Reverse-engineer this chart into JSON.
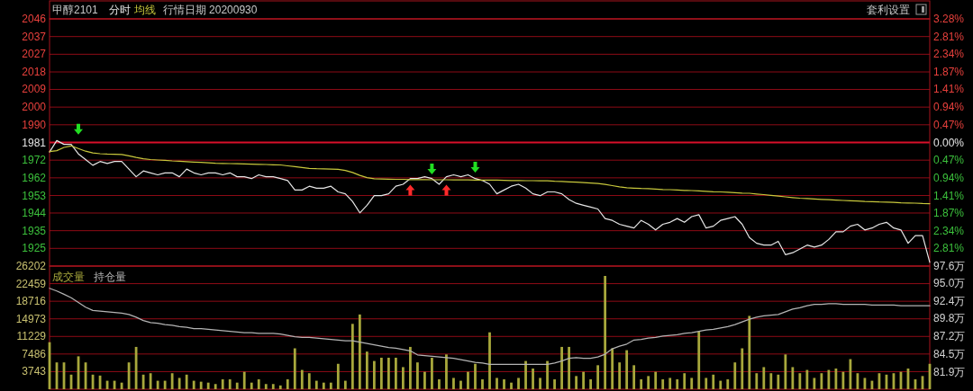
{
  "chart_data": [
    {
      "type": "line",
      "title": "甲醇2101",
      "subtitle": "行情日期 20200930",
      "annotations": [
        "套利设置"
      ],
      "legend": "top left",
      "grid": "y",
      "categories": [
        null,
        null,
        null,
        null,
        null,
        null,
        null,
        null,
        null,
        null,
        null,
        null,
        null,
        null,
        null,
        null,
        null,
        null,
        null,
        null,
        null,
        null,
        null,
        null,
        null,
        null,
        null,
        null,
        null,
        null,
        null,
        null,
        null,
        null,
        null,
        null,
        null,
        null,
        null,
        null,
        null,
        null,
        null,
        null,
        null,
        null,
        null,
        null,
        null,
        null,
        null,
        null,
        null,
        null,
        null,
        null,
        null,
        null,
        null,
        null,
        null,
        null,
        null,
        null,
        null,
        null,
        null,
        null,
        null,
        null,
        null,
        null,
        null,
        null,
        null,
        null,
        null,
        null,
        null,
        null,
        null,
        null,
        null,
        null,
        null,
        null,
        null,
        null,
        null,
        null,
        null,
        null,
        null,
        null,
        null,
        null,
        null,
        null,
        null,
        null,
        null,
        null,
        null,
        null,
        null,
        null,
        null,
        null,
        null,
        null,
        null,
        null,
        null,
        null,
        null,
        null,
        null,
        null,
        null,
        null,
        null,
        null,
        null
      ],
      "ylim": [
        1916,
        2046
      ],
      "yticks": [
        2046,
        {
          "value": 2036.7,
          "label": "2037"
        },
        {
          "value": 2027.4,
          "label": "2027"
        },
        {
          "value": 2018.1,
          "label": "2018"
        },
        {
          "value": 2008.9,
          "label": "2009"
        },
        {
          "value": 1999.6,
          "label": "2000"
        },
        {
          "value": 1990.3,
          "label": "1990"
        },
        1981,
        {
          "value": 1971.7,
          "label": "1972"
        },
        {
          "value": 1962.4,
          "label": "1962"
        },
        {
          "value": 1953.1,
          "label": "1953"
        },
        {
          "value": 1943.9,
          "label": "1944"
        },
        {
          "value": 1934.6,
          "label": "1935"
        },
        {
          "value": 1925.3,
          "label": "1925"
        }
      ],
      "y2lim": [
        -3.28,
        3.28
      ],
      "y2ticks": [
        {
          "value": 3.28,
          "label": "3.28%"
        },
        {
          "value": 2.81,
          "label": "2.81%"
        },
        {
          "value": 2.34,
          "label": "2.34%"
        },
        {
          "value": 1.87,
          "label": "1.87%"
        },
        {
          "value": 1.41,
          "label": "1.41%"
        },
        {
          "value": 0.94,
          "label": "0.94%"
        },
        {
          "value": 0.47,
          "label": "0.47%"
        },
        {
          "value": 0,
          "label": "0.00%"
        },
        {
          "value": -0.47,
          "label": "0.47%"
        },
        {
          "value": -0.94,
          "label": "0.94%"
        },
        {
          "value": -1.41,
          "label": "1.41%"
        },
        {
          "value": -1.87,
          "label": "1.87%"
        },
        {
          "value": -2.34,
          "label": "2.34%"
        },
        {
          "value": -2.81,
          "label": "2.81%"
        }
      ],
      "ref_lines": [
        {
          "axis": "y",
          "value": 1981
        }
      ],
      "series": [
        {
          "name": "分时",
          "color": "#e6e6e6",
          "values": [
            1976,
            1982,
            1980,
            1980,
            1975,
            1972,
            1969,
            1971,
            1970,
            1971,
            1971,
            1967,
            1963,
            1966,
            1965,
            1964,
            1965,
            1965,
            1963,
            1967,
            1965,
            1964,
            1965,
            1965,
            1964,
            1965,
            1963,
            1963,
            1962,
            1964,
            1963,
            1963,
            1962,
            1961,
            1956,
            1956,
            1958,
            1957,
            1957,
            1958,
            1955,
            1954,
            1950,
            1944,
            1948,
            1953,
            1953,
            1954,
            1958,
            1959,
            1962,
            1962,
            1963,
            1962,
            1959,
            1963,
            1964,
            1963,
            1964,
            1962,
            1961,
            1959,
            1954,
            1956,
            1958,
            1959,
            1957,
            1954,
            1953,
            1955,
            1955,
            1954,
            1951,
            1949,
            1948,
            1947,
            1946,
            1941,
            1940,
            1938,
            1937,
            1936,
            1940,
            1938,
            1935,
            1938,
            1939,
            1941,
            1939,
            1942,
            1943,
            1936,
            1937,
            1940,
            1941,
            1942,
            1938,
            1931,
            1928,
            1927,
            1927,
            1929,
            1922,
            1923,
            1925,
            1927,
            1926,
            1927,
            1930,
            1934,
            1934,
            1937,
            1938,
            1935,
            1936,
            1938,
            1939,
            1936,
            1935,
            1928,
            1932,
            1932,
            1918
          ]
        },
        {
          "name": "均线",
          "color": "#c8c83c",
          "values": [
            1976.2,
            1976.7,
            1978.4,
            1979.2,
            1977.8,
            1976.4,
            1975.5,
            1975.1,
            1974.9,
            1974.8,
            1974.7,
            1974.0,
            1973.1,
            1972.4,
            1972.0,
            1971.8,
            1971.6,
            1971.3,
            1971.1,
            1970.9,
            1970.7,
            1970.5,
            1970.3,
            1970.1,
            1970.0,
            1969.9,
            1969.8,
            1969.7,
            1969.6,
            1969.5,
            1969.4,
            1969.3,
            1969.2,
            1968.7,
            1968.3,
            1967.8,
            1967.4,
            1967.2,
            1967.1,
            1967.0,
            1966.9,
            1966.3,
            1965.2,
            1963.7,
            1962.5,
            1961.9,
            1961.8,
            1961.7,
            1961.6,
            1961.6,
            1961.5,
            1961.5,
            1961.5,
            1961.4,
            1961.4,
            1961.4,
            1961.3,
            1961.3,
            1961.3,
            1961.2,
            1961.2,
            1961.2,
            1961.2,
            1961.1,
            1961.0,
            1961.0,
            1960.9,
            1960.9,
            1960.8,
            1960.8,
            1960.6,
            1960.5,
            1960.3,
            1960.1,
            1959.9,
            1959.7,
            1959.4,
            1958.9,
            1958.3,
            1957.7,
            1957.2,
            1957.0,
            1956.8,
            1956.7,
            1956.5,
            1956.3,
            1956.2,
            1956.0,
            1955.8,
            1955.7,
            1955.5,
            1955.3,
            1955.1,
            1955.0,
            1954.8,
            1954.6,
            1954.4,
            1954.3,
            1953.9,
            1953.6,
            1953.2,
            1952.8,
            1952.4,
            1952.0,
            1951.7,
            1951.5,
            1951.3,
            1951.1,
            1950.9,
            1950.7,
            1950.5,
            1950.3,
            1950.2,
            1950.0,
            1949.9,
            1949.7,
            1949.6,
            1949.5,
            1949.3,
            1949.2,
            1949.1,
            1948.9,
            1948.8
          ]
        },
        {
          "type": "scatter",
          "marker": "triangle",
          "color": "#22dd22",
          "values": [
            null,
            null,
            null,
            null,
            1988,
            null,
            null,
            null,
            null,
            null,
            null,
            null,
            null,
            null,
            null,
            null,
            null,
            null,
            null,
            null,
            null,
            null,
            null,
            null,
            null,
            null,
            null,
            null,
            null,
            null,
            null,
            null,
            null,
            null,
            null,
            null,
            null,
            null,
            null,
            null,
            null,
            null,
            null,
            null,
            null,
            null,
            null,
            null,
            null,
            null,
            null,
            null,
            null,
            1967,
            null,
            null,
            null,
            null,
            null,
            1968,
            null,
            null,
            null,
            null,
            null,
            null,
            null,
            null,
            null,
            null,
            null,
            null,
            null,
            null,
            null,
            null,
            null,
            null,
            null,
            null,
            null,
            null,
            null,
            null,
            null,
            null,
            null,
            null,
            null,
            null,
            null,
            null,
            null,
            null,
            null,
            null,
            null,
            null,
            null,
            null,
            null,
            null,
            null,
            null,
            null,
            null,
            null,
            null,
            null,
            null,
            null,
            null,
            null,
            null,
            null,
            null,
            null,
            null,
            null,
            null,
            null,
            null,
            null
          ]
        },
        {
          "type": "scatter",
          "marker": "triangle",
          "color": "#ff2a2a",
          "values": [
            null,
            null,
            null,
            null,
            null,
            null,
            null,
            null,
            null,
            null,
            null,
            null,
            null,
            null,
            null,
            null,
            null,
            null,
            null,
            null,
            null,
            null,
            null,
            null,
            null,
            null,
            null,
            null,
            null,
            null,
            null,
            null,
            null,
            null,
            null,
            null,
            null,
            null,
            null,
            null,
            null,
            null,
            null,
            null,
            null,
            null,
            null,
            null,
            null,
            null,
            1956,
            null,
            null,
            null,
            null,
            1956,
            null,
            null,
            null,
            null,
            null,
            null,
            null,
            null,
            null,
            null,
            null,
            null,
            null,
            null,
            null,
            null,
            null,
            null,
            null,
            null,
            null,
            null,
            null,
            null,
            null,
            null,
            null,
            null,
            null,
            null,
            null,
            null,
            null,
            null,
            null,
            null,
            null,
            null,
            null,
            null,
            null,
            null,
            null,
            null,
            null,
            null,
            null,
            null,
            null,
            null,
            null,
            null,
            null,
            null,
            null,
            null,
            null,
            null,
            null,
            null,
            null,
            null,
            null,
            null,
            null,
            null,
            null
          ]
        }
      ]
    },
    {
      "type": "bar",
      "legend": "top left",
      "grid": "y",
      "categories": [
        null,
        null,
        null,
        null,
        null,
        null,
        null,
        null,
        null,
        null,
        null,
        null,
        null,
        null,
        null,
        null,
        null,
        null,
        null,
        null,
        null,
        null,
        null,
        null,
        null,
        null,
        null,
        null,
        null,
        null,
        null,
        null,
        null,
        null,
        null,
        null,
        null,
        null,
        null,
        null,
        null,
        null,
        null,
        null,
        null,
        null,
        null,
        null,
        null,
        null,
        null,
        null,
        null,
        null,
        null,
        null,
        null,
        null,
        null,
        null,
        null,
        null,
        null,
        null,
        null,
        null,
        null,
        null,
        null,
        null,
        null,
        null,
        null,
        null,
        null,
        null,
        null,
        null,
        null,
        null,
        null,
        null,
        null,
        null,
        null,
        null,
        null,
        null,
        null,
        null,
        null,
        null,
        null,
        null,
        null,
        null,
        null,
        null,
        null,
        null,
        null,
        null,
        null,
        null,
        null,
        null,
        null,
        null,
        null,
        null,
        null,
        null,
        null,
        null,
        null,
        null,
        null,
        null,
        null,
        null,
        null,
        null,
        null
      ],
      "ylim": [
        0,
        26202
      ],
      "yticks": [
        3743,
        7486,
        11229,
        14973,
        18716,
        22459,
        26202
      ],
      "y2lim": [
        79.3,
        97.6
      ],
      "y2ticks": [
        {
          "value": 81.9,
          "label": "81.9万"
        },
        {
          "value": 84.5,
          "label": "84.5万"
        },
        {
          "value": 87.2,
          "label": "87.2万"
        },
        {
          "value": 89.8,
          "label": "89.8万"
        },
        {
          "value": 92.4,
          "label": "92.4万"
        },
        {
          "value": 95.0,
          "label": "95.0万"
        },
        {
          "value": 97.6,
          "label": "97.6万"
        }
      ],
      "series": [
        {
          "name": "成交量",
          "color": "#a8a83c",
          "values": [
            10000,
            5700,
            5700,
            3100,
            7000,
            5700,
            3100,
            2900,
            1800,
            1800,
            1400,
            5700,
            9000,
            3100,
            3400,
            1800,
            1800,
            3400,
            2400,
            3100,
            1800,
            1600,
            1400,
            1100,
            2100,
            2100,
            1400,
            3700,
            1400,
            2100,
            1100,
            1100,
            800,
            2100,
            8700,
            4100,
            3400,
            1800,
            1400,
            1400,
            5400,
            1800,
            13900,
            15900,
            8000,
            6000,
            6700,
            6700,
            6700,
            4700,
            9000,
            5700,
            3700,
            6700,
            2100,
            7400,
            2400,
            1800,
            3700,
            5400,
            2100,
            12100,
            2400,
            2100,
            1400,
            2400,
            6000,
            4400,
            2400,
            6000,
            2100,
            9000,
            9000,
            2800,
            3700,
            2100,
            5100,
            24100,
            8700,
            5700,
            8300,
            5100,
            2100,
            2800,
            3700,
            2100,
            2400,
            2100,
            3400,
            2400,
            12300,
            2400,
            3100,
            1800,
            2100,
            5700,
            8700,
            15600,
            3400,
            4700,
            3400,
            3100,
            7400,
            4700,
            3400,
            4100,
            2400,
            3400,
            4100,
            4400,
            3700,
            6400,
            3400,
            2400,
            1800,
            3400,
            3100,
            3400,
            3700,
            4400,
            2100,
            2800,
            5400
          ]
        },
        {
          "name": "持仓量",
          "type": "line",
          "axis": "y2",
          "color": "#b4b4b4",
          "values": [
            94.3,
            93.9,
            93.4,
            92.9,
            92.2,
            91.5,
            91.0,
            90.9,
            90.8,
            90.7,
            90.6,
            90.4,
            90.0,
            89.5,
            89.2,
            89.1,
            88.9,
            88.8,
            88.6,
            88.5,
            88.3,
            88.3,
            88.2,
            88.1,
            88.0,
            87.9,
            87.8,
            87.7,
            87.7,
            87.6,
            87.6,
            87.6,
            87.5,
            87.3,
            87.1,
            87.0,
            87.0,
            86.9,
            86.8,
            86.7,
            86.6,
            86.5,
            86.5,
            86.3,
            86.1,
            85.9,
            85.7,
            85.5,
            85.4,
            85.2,
            85.0,
            84.4,
            84.3,
            84.2,
            84.1,
            84.0,
            83.9,
            83.7,
            83.5,
            83.3,
            83.2,
            83.0,
            83.0,
            83.0,
            83.0,
            83.0,
            83.0,
            83.0,
            83.0,
            83.0,
            83.2,
            83.5,
            83.9,
            84.0,
            83.9,
            83.9,
            84.1,
            84.5,
            85.3,
            85.7,
            86.0,
            86.6,
            86.7,
            86.9,
            87.0,
            87.2,
            87.3,
            87.4,
            87.6,
            87.7,
            87.9,
            88.1,
            88.2,
            88.4,
            88.6,
            88.9,
            89.3,
            89.7,
            90.0,
            90.2,
            90.3,
            90.4,
            90.8,
            91.2,
            91.4,
            91.7,
            91.9,
            91.9,
            92.0,
            92.0,
            91.9,
            91.9,
            91.9,
            91.9,
            91.8,
            91.8,
            91.8,
            91.8,
            91.7,
            91.7,
            91.7,
            91.7,
            91.7
          ]
        }
      ]
    }
  ]
}
